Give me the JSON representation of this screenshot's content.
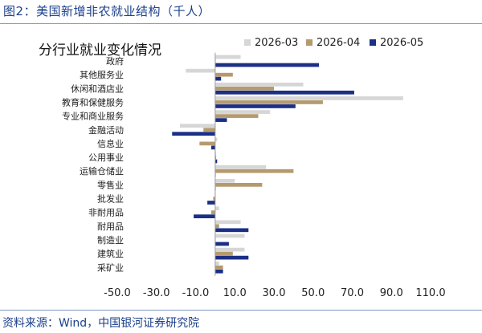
{
  "figure": {
    "title": "图2：美国新增非农就业结构（千人）",
    "source": "资料来源：Wind，中国银河证券研究院"
  },
  "chart_data": {
    "type": "bar",
    "orientation": "horizontal",
    "title": "分行业就业变化情况",
    "xlabel": "",
    "ylabel": "",
    "xlim": [
      -50,
      110
    ],
    "xticks": [
      "-50.0",
      "-30.0",
      "-10.0",
      "10.0",
      "30.0",
      "50.0",
      "70.0",
      "90.0",
      "110.0"
    ],
    "xtick_values": [
      -50,
      -30,
      -10,
      10,
      30,
      50,
      70,
      90,
      110
    ],
    "grid": false,
    "legend_position": "top",
    "categories": [
      "政府",
      "其他服务业",
      "休闲和酒店业",
      "教育和保健服务",
      "专业和商业服务",
      "金融活动",
      "信息业",
      "公用事业",
      "运输仓储业",
      "零售业",
      "批发业",
      "非耐用品",
      "耐用品",
      "制造业",
      "建筑业",
      "采矿业"
    ],
    "series": [
      {
        "name": "2026-03",
        "color": "#d6d6d6",
        "values": [
          13,
          -15,
          45,
          96,
          28,
          -18,
          1,
          0.5,
          26,
          10,
          0,
          2,
          13,
          15,
          15,
          2
        ]
      },
      {
        "name": "2026-04",
        "color": "#b59a6e",
        "values": [
          0,
          9,
          30,
          55,
          22,
          -6,
          -8,
          0.5,
          40,
          24,
          -1,
          -2,
          2,
          0,
          9,
          4
        ]
      },
      {
        "name": "2026-05",
        "color": "#1a2f85",
        "values": [
          53,
          3,
          71,
          41,
          6,
          -22,
          -2,
          1,
          0,
          0,
          -4,
          -11,
          17,
          7,
          17,
          4
        ]
      }
    ]
  }
}
